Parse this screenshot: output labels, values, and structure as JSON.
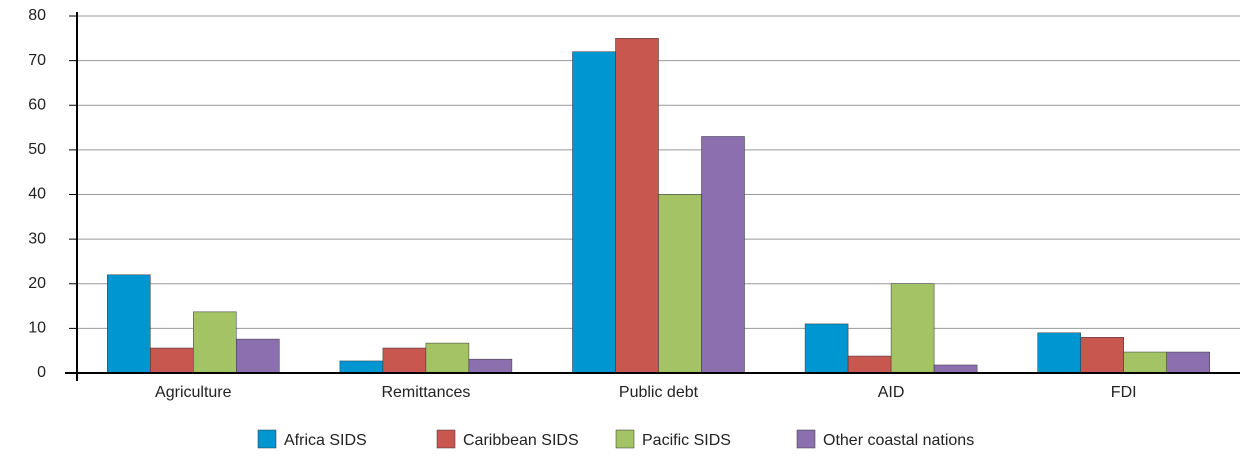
{
  "chart_data": {
    "type": "bar",
    "categories": [
      "Agriculture",
      "Remittances",
      "Public debt",
      "AID",
      "FDI"
    ],
    "series": [
      {
        "name": "Africa SIDS",
        "color": "#0096d2",
        "values": [
          22,
          2.7,
          72,
          11,
          9
        ]
      },
      {
        "name": "Caribbean SIDS",
        "color": "#c8574f",
        "values": [
          5.6,
          5.6,
          75,
          3.8,
          8
        ]
      },
      {
        "name": "Pacific SIDS",
        "color": "#a3c365",
        "values": [
          13.7,
          6.7,
          40,
          20,
          4.7
        ]
      },
      {
        "name": "Other coastal nations",
        "color": "#8b6fae",
        "values": [
          7.6,
          3.1,
          53,
          1.8,
          4.7
        ]
      }
    ],
    "ylim": [
      0,
      80
    ],
    "yticks": [
      0,
      10,
      20,
      30,
      40,
      50,
      60,
      70,
      80
    ],
    "grid": true,
    "legend": "bottom"
  }
}
